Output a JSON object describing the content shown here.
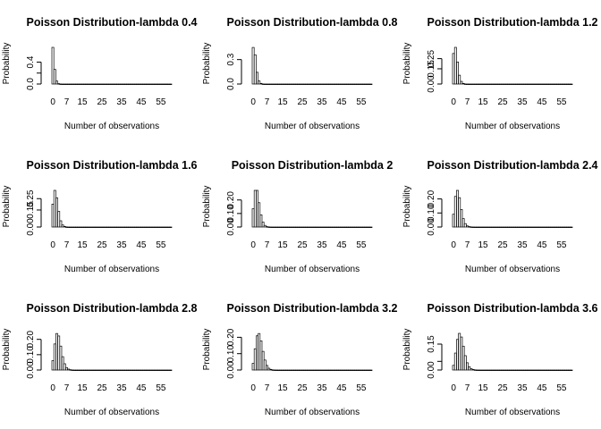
{
  "chart_data": [
    {
      "type": "bar",
      "title": "Poisson Distribution-lambda 0.4",
      "xlabel": "Number of observations",
      "ylabel": "Probability",
      "lambda": 0.4,
      "x_ticks": [
        0,
        7,
        15,
        25,
        35,
        45,
        55
      ],
      "y_ticks": [
        0.0,
        0.2,
        0.4
      ],
      "y_tick_labels": [
        "0.0",
        "0.4"
      ],
      "ylim": [
        0,
        0.67
      ],
      "xlim": [
        0,
        61
      ],
      "categories": [
        0,
        1,
        2,
        3,
        4,
        5,
        6
      ],
      "values": [
        0.67,
        0.268,
        0.054,
        0.007,
        0.001,
        0.0001,
        0.0
      ]
    },
    {
      "type": "bar",
      "title": "Poisson Distribution-lambda 0.8",
      "xlabel": "Number of observations",
      "ylabel": "Probability",
      "lambda": 0.8,
      "x_ticks": [
        0,
        7,
        15,
        25,
        35,
        45,
        55
      ],
      "y_ticks": [
        0.0,
        0.3
      ],
      "y_tick_labels": [
        "0.0",
        "0.3"
      ],
      "ylim": [
        0,
        0.45
      ],
      "xlim": [
        0,
        61
      ],
      "categories": [
        0,
        1,
        2,
        3,
        4,
        5,
        6,
        7
      ],
      "values": [
        0.449,
        0.359,
        0.144,
        0.038,
        0.008,
        0.001,
        0.0002,
        0.0
      ]
    },
    {
      "type": "bar",
      "title": "Poisson Distribution-lambda 1.2",
      "xlabel": "Number of observations",
      "ylabel": "Probability",
      "lambda": 1.2,
      "x_ticks": [
        0,
        7,
        15,
        25,
        35,
        45,
        55
      ],
      "y_ticks": [
        0.0,
        0.15,
        0.25
      ],
      "y_tick_labels": [
        "0.00",
        "0.15",
        "0.25"
      ],
      "ylim": [
        0,
        0.361
      ],
      "xlim": [
        0,
        61
      ],
      "categories": [
        0,
        1,
        2,
        3,
        4,
        5,
        6,
        7,
        8
      ],
      "values": [
        0.301,
        0.361,
        0.217,
        0.087,
        0.026,
        0.006,
        0.001,
        0.0002,
        0.0
      ]
    },
    {
      "type": "bar",
      "title": "Poisson Distribution-lambda 1.6",
      "xlabel": "Number of observations",
      "ylabel": "Probability",
      "lambda": 1.6,
      "x_ticks": [
        0,
        7,
        15,
        25,
        35,
        45,
        55
      ],
      "y_ticks": [
        0.0,
        0.15,
        0.25
      ],
      "y_tick_labels": [
        "0.00",
        "0.15",
        "0.25"
      ],
      "ylim": [
        0,
        0.323
      ],
      "xlim": [
        0,
        61
      ],
      "categories": [
        0,
        1,
        2,
        3,
        4,
        5,
        6,
        7,
        8,
        9
      ],
      "values": [
        0.202,
        0.323,
        0.258,
        0.138,
        0.055,
        0.018,
        0.005,
        0.001,
        0.0002,
        0.0
      ]
    },
    {
      "type": "bar",
      "title": "Poisson Distribution-lambda 2",
      "xlabel": "Number of observations",
      "ylabel": "Probability",
      "lambda": 2,
      "x_ticks": [
        0,
        7,
        15,
        25,
        35,
        45,
        55
      ],
      "y_ticks": [
        0.0,
        0.1,
        0.2
      ],
      "y_tick_labels": [
        "0.00",
        "0.10",
        "0.20"
      ],
      "ylim": [
        0,
        0.271
      ],
      "xlim": [
        0,
        61
      ],
      "categories": [
        0,
        1,
        2,
        3,
        4,
        5,
        6,
        7,
        8,
        9,
        10
      ],
      "values": [
        0.135,
        0.271,
        0.271,
        0.18,
        0.09,
        0.036,
        0.012,
        0.003,
        0.001,
        0.0002,
        0.0
      ]
    },
    {
      "type": "bar",
      "title": "Poisson Distribution-lambda 2.4",
      "xlabel": "Number of observations",
      "ylabel": "Probability",
      "lambda": 2.4,
      "x_ticks": [
        0,
        7,
        15,
        25,
        35,
        45,
        55
      ],
      "y_ticks": [
        0.0,
        0.1,
        0.2
      ],
      "y_tick_labels": [
        "0.00",
        "0.10",
        "0.20"
      ],
      "ylim": [
        0,
        0.261
      ],
      "xlim": [
        0,
        61
      ],
      "categories": [
        0,
        1,
        2,
        3,
        4,
        5,
        6,
        7,
        8,
        9,
        10,
        11
      ],
      "values": [
        0.091,
        0.218,
        0.261,
        0.209,
        0.125,
        0.06,
        0.024,
        0.008,
        0.003,
        0.001,
        0.0002,
        0.0
      ]
    },
    {
      "type": "bar",
      "title": "Poisson Distribution-lambda 2.8",
      "xlabel": "Number of observations",
      "ylabel": "Probability",
      "lambda": 2.8,
      "x_ticks": [
        0,
        7,
        15,
        25,
        35,
        45,
        55
      ],
      "y_ticks": [
        0.0,
        0.1,
        0.2
      ],
      "y_tick_labels": [
        "0.00",
        "0.10",
        "0.20"
      ],
      "ylim": [
        0,
        0.239
      ],
      "xlim": [
        0,
        61
      ],
      "categories": [
        0,
        1,
        2,
        3,
        4,
        5,
        6,
        7,
        8,
        9,
        10,
        11,
        12
      ],
      "values": [
        0.061,
        0.17,
        0.238,
        0.222,
        0.156,
        0.087,
        0.041,
        0.016,
        0.006,
        0.002,
        0.0005,
        0.0001,
        0.0
      ]
    },
    {
      "type": "bar",
      "title": "Poisson Distribution-lambda 3.2",
      "xlabel": "Number of observations",
      "ylabel": "Probability",
      "lambda": 3.2,
      "x_ticks": [
        0,
        7,
        15,
        25,
        35,
        45,
        55
      ],
      "y_ticks": [
        0.0,
        0.1,
        0.2
      ],
      "y_tick_labels": [
        "0.00",
        "0.10",
        "0.20"
      ],
      "ylim": [
        0,
        0.224
      ],
      "xlim": [
        0,
        61
      ],
      "categories": [
        0,
        1,
        2,
        3,
        4,
        5,
        6,
        7,
        8,
        9,
        10,
        11,
        12,
        13
      ],
      "values": [
        0.041,
        0.13,
        0.209,
        0.223,
        0.178,
        0.114,
        0.061,
        0.028,
        0.011,
        0.004,
        0.001,
        0.0004,
        0.0001,
        0.0
      ]
    },
    {
      "type": "bar",
      "title": "Poisson Distribution-lambda 3.6",
      "xlabel": "Number of observations",
      "ylabel": "Probability",
      "lambda": 3.6,
      "x_ticks": [
        0,
        7,
        15,
        25,
        35,
        45,
        55
      ],
      "y_ticks": [
        0.0,
        0.05,
        0.15
      ],
      "y_tick_labels": [
        "0.00",
        "0.15"
      ],
      "ylim": [
        0,
        0.212
      ],
      "xlim": [
        0,
        61
      ],
      "categories": [
        0,
        1,
        2,
        3,
        4,
        5,
        6,
        7,
        8,
        9,
        10,
        11,
        12,
        13,
        14
      ],
      "values": [
        0.027,
        0.098,
        0.177,
        0.212,
        0.191,
        0.138,
        0.083,
        0.042,
        0.019,
        0.008,
        0.003,
        0.001,
        0.0003,
        0.0001,
        0.0
      ]
    }
  ]
}
